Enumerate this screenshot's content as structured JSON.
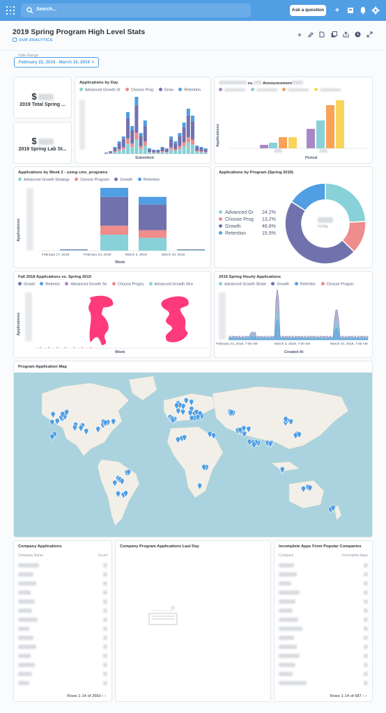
{
  "topbar": {
    "search_placeholder": "Search...",
    "ask_label": "Ask a question"
  },
  "dashboard": {
    "title": "2019 Spring Program High Level Stats",
    "collection": "OUR ANALYTICS",
    "filter_label": "Date Range",
    "filter_value": "February 22, 2019 - March 15, 2019"
  },
  "scalars": [
    {
      "value": "$",
      "label": "2019 Total Spring ..."
    },
    {
      "value": "$",
      "label": "2019 Spring Lab St..."
    }
  ],
  "colors": {
    "teal": "#88d1d8",
    "salmon": "#ef8c8c",
    "purple": "#7172ad",
    "blue": "#509ee3",
    "lavender": "#a989c5",
    "orange": "#f9a258",
    "yellow": "#f9d45c",
    "pink": "#ff3a7a"
  },
  "apps_by_day": {
    "title": "Applications by Day",
    "legend": [
      "Advanced Growth St",
      "Choose Prog",
      "Grow",
      "Retention"
    ],
    "xlabel": "Submitted"
  },
  "apps_vs_announcement": {
    "title_prefix": "vs.",
    "title_suffix": "Announcement",
    "ylabel": "Applications",
    "xlabel": "Period"
  },
  "by_week": {
    "title": "Applications by Week 2 - using cms_programs",
    "legend": [
      "Advanced Growth Strategy",
      "Choose Program",
      "Growth",
      "Retention"
    ],
    "ylabel": "Applications",
    "xlabel": "Week",
    "ticks": [
      "February 17, 2019",
      "February 24, 2019",
      "March 3, 2019",
      "March 10, 2019"
    ]
  },
  "by_program": {
    "title": "Applications by Program (Spring 2019)",
    "rows": [
      {
        "name": "Advanced Gr",
        "pct": "24.2%"
      },
      {
        "name": "Choose Prog",
        "pct": "13.2%"
      },
      {
        "name": "Growth",
        "pct": "46.8%"
      },
      {
        "name": "Retention",
        "pct": "15.9%"
      }
    ],
    "total_label": "TOTAL"
  },
  "fall_vs_spring": {
    "title": "Fall 2018 Applications vs. Spring 2019",
    "legend": [
      "Growtl",
      "Retentio",
      "Advanced Growth Se",
      "Choose Progra",
      "Advanced Growth Stra"
    ],
    "ylabel": "Applications",
    "xlabel": "Week"
  },
  "hourly": {
    "title": "2019 Spring Hourly Applications",
    "legend": [
      "Advanced Growth Strate",
      "Growth",
      "Retentior",
      "Choose Prograr"
    ],
    "ticks": [
      "February 24, 2019, 7:00 AM",
      "March 3, 2019, 7:00 AM",
      "March 10, 2019, 7:00 AM"
    ],
    "xlabel": "Created At"
  },
  "map": {
    "title": "Program Application Map"
  },
  "company_apps": {
    "title": "Company Applications",
    "col1": "Company Name",
    "col2": "Count",
    "pager": "Rows 1-14 of 2660"
  },
  "last_day": {
    "title": "Company Program Applications Last Day"
  },
  "incomplete": {
    "title": "Incomplete Apps From Popular Companies",
    "col1": "Company",
    "col2": "Incomplete Apps",
    "pager": "Rows 1-14 of 687"
  },
  "chart_data": [
    {
      "type": "bar",
      "title": "Applications by Week 2 - using cms_programs",
      "categories": [
        "February 17, 2019",
        "February 24, 2019",
        "March 3, 2019",
        "March 10, 2019"
      ],
      "series": [
        {
          "name": "Advanced Growth Strategy",
          "values": [
            1,
            25,
            20,
            1
          ]
        },
        {
          "name": "Choose Program",
          "values": [
            0,
            14,
            12,
            0
          ]
        },
        {
          "name": "Growth",
          "values": [
            1,
            45,
            40,
            1
          ]
        },
        {
          "name": "Retention",
          "values": [
            0,
            14,
            12,
            0
          ]
        }
      ],
      "xlabel": "Week",
      "ylabel": "Applications"
    },
    {
      "type": "pie",
      "title": "Applications by Program (Spring 2019)",
      "categories": [
        "Advanced Gr",
        "Choose Prog",
        "Growth",
        "Retention"
      ],
      "values": [
        24.2,
        13.2,
        46.8,
        15.9
      ]
    }
  ]
}
